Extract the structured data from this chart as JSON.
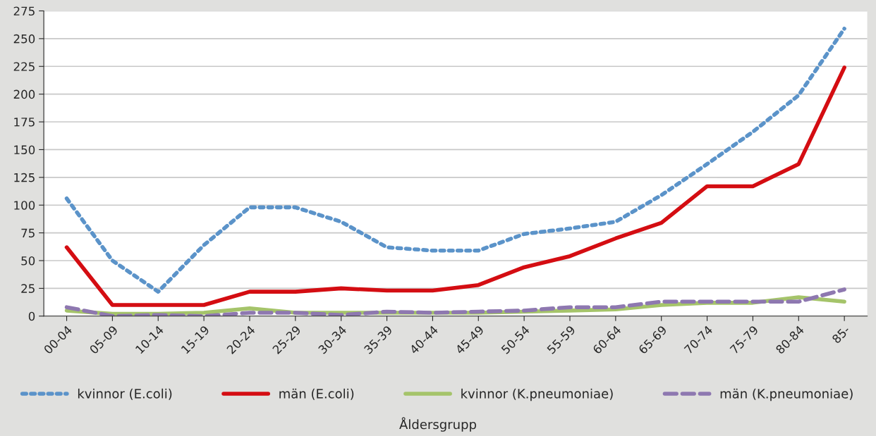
{
  "chart_data": {
    "type": "line",
    "xlabel": "Åldersgrupp",
    "categories": [
      "00-04",
      "05-09",
      "10-14",
      "15-19",
      "20-24",
      "25-29",
      "30-34",
      "35-39",
      "40-44",
      "45-49",
      "50-54",
      "55-59",
      "60-64",
      "65-69",
      "70-74",
      "75-79",
      "80-84",
      "85-"
    ],
    "series": [
      {
        "name": "kvinnor (E.coli)",
        "color": "#5b93c9",
        "line_style": "dotted",
        "values": [
          106,
          50,
          22,
          64,
          98,
          98,
          85,
          62,
          59,
          59,
          74,
          79,
          85,
          109,
          137,
          166,
          199,
          259
        ]
      },
      {
        "name": "män (E.coli)",
        "color": "#d40d12",
        "line_style": "solid",
        "values": [
          62,
          10,
          10,
          10,
          22,
          22,
          25,
          23,
          23,
          28,
          44,
          54,
          70,
          84,
          117,
          117,
          137,
          224
        ]
      },
      {
        "name": "kvinnor (K.pneumoniae)",
        "color": "#a5c46a",
        "line_style": "solid",
        "values": [
          5,
          2,
          2,
          3,
          7,
          3,
          3,
          3,
          3,
          3,
          4,
          5,
          6,
          10,
          12,
          12,
          17,
          13
        ]
      },
      {
        "name": "män (K.pneumoniae)",
        "color": "#8e78b0",
        "line_style": "dashed",
        "values": [
          8,
          0,
          1,
          0,
          3,
          3,
          1,
          4,
          3,
          4,
          5,
          8,
          8,
          13,
          13,
          13,
          13,
          24
        ]
      }
    ],
    "ylim": [
      0,
      275
    ],
    "yticks": [
      0,
      25,
      50,
      75,
      100,
      125,
      150,
      175,
      200,
      225,
      250,
      275
    ],
    "grid": "y",
    "legend": "bottom"
  }
}
